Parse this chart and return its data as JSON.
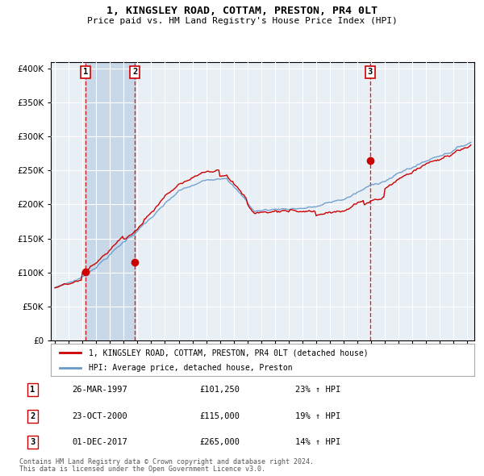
{
  "title": "1, KINGSLEY ROAD, COTTAM, PRESTON, PR4 0LT",
  "subtitle": "Price paid vs. HM Land Registry's House Price Index (HPI)",
  "legend_line1": "1, KINGSLEY ROAD, COTTAM, PRESTON, PR4 0LT (detached house)",
  "legend_line2": "HPI: Average price, detached house, Preston",
  "footer1": "Contains HM Land Registry data © Crown copyright and database right 2024.",
  "footer2": "This data is licensed under the Open Government Licence v3.0.",
  "transactions": [
    {
      "num": 1,
      "date": "26-MAR-1997",
      "price": 101250,
      "pct": "23%",
      "dir": "↑"
    },
    {
      "num": 2,
      "date": "23-OCT-2000",
      "price": 115000,
      "pct": "19%",
      "dir": "↑"
    },
    {
      "num": 3,
      "date": "01-DEC-2017",
      "price": 265000,
      "pct": "14%",
      "dir": "↑"
    }
  ],
  "vline_dates": [
    1997.23,
    2000.81,
    2017.92
  ],
  "sale_prices": [
    101250,
    115000,
    265000
  ],
  "ylim": [
    0,
    410000
  ],
  "xlim_start": 1994.7,
  "xlim_end": 2025.5,
  "red_color": "#cc0000",
  "blue_color": "#6699cc",
  "vline_color": "#cc0000",
  "plot_bg": "#e8eff5",
  "grid_color": "#ffffff",
  "shade1_start": 1997.23,
  "shade1_end": 2000.81,
  "shade_color": "#c8d8e8"
}
